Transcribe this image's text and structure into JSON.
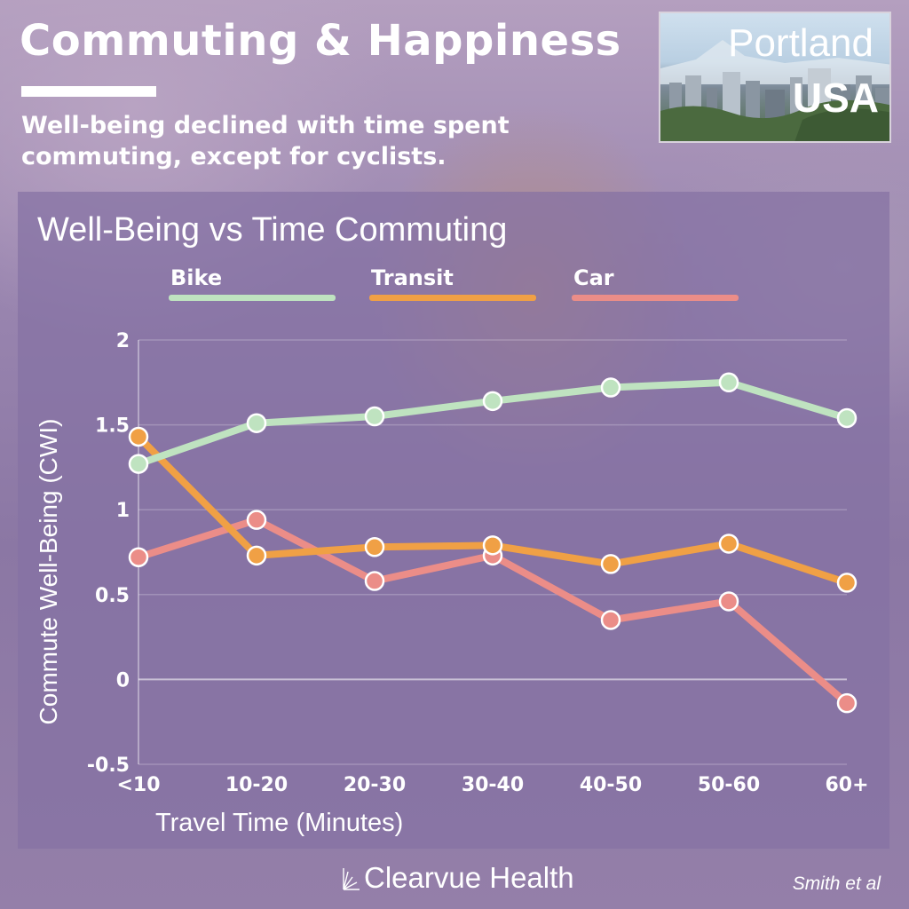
{
  "header": {
    "title": "Commuting & Happiness",
    "subtitle": "Well-being declined with time spent commuting, except for cyclists."
  },
  "location": {
    "city": "Portland",
    "country": "USA"
  },
  "chart_data": {
    "type": "line",
    "title": "Well-Being vs Time Commuting",
    "xlabel": "Travel Time (Minutes)",
    "ylabel": "Commute Well-Being (CWI)",
    "categories": [
      "<10",
      "10-20",
      "20-30",
      "30-40",
      "40-50",
      "50-60",
      "60+"
    ],
    "ylim": [
      -0.5,
      2
    ],
    "yticks": [
      -0.5,
      0,
      0.5,
      1,
      1.5,
      2
    ],
    "ytick_labels": [
      "-0.5",
      "0",
      "0.5",
      "1",
      "1.5",
      "2"
    ],
    "grid": true,
    "legend_position": "top",
    "series": [
      {
        "name": "Bike",
        "color": "#bfe3c0",
        "values": [
          1.27,
          1.51,
          1.55,
          1.64,
          1.72,
          1.75,
          1.54
        ]
      },
      {
        "name": "Transit",
        "color": "#f0a045",
        "values": [
          1.43,
          0.73,
          0.78,
          0.79,
          0.68,
          0.8,
          0.57
        ]
      },
      {
        "name": "Car",
        "color": "#eb8d88",
        "values": [
          0.72,
          0.94,
          0.58,
          0.73,
          0.35,
          0.46,
          -0.14
        ]
      }
    ]
  },
  "footer": {
    "brand": "Clearvue Health",
    "credit": "Smith et al"
  }
}
